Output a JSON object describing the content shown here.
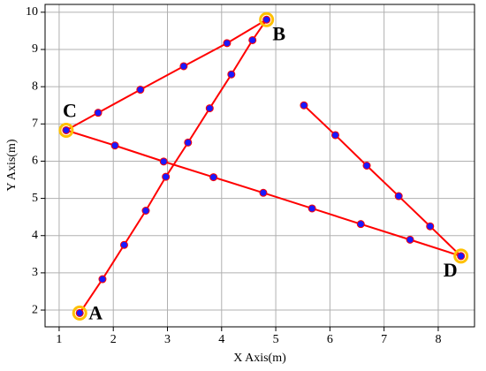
{
  "chart_data": {
    "type": "line",
    "x_label": "X Axis(m)",
    "y_label": "Y Axis(m)",
    "x": [
      1.38,
      1.8,
      2.2,
      2.6,
      2.97,
      3.38,
      3.78,
      4.18,
      4.57,
      4.83,
      4.1,
      3.3,
      2.5,
      1.72,
      1.13,
      2.03,
      2.93,
      3.85,
      4.77,
      5.67,
      6.57,
      7.48,
      8.42,
      7.85,
      7.27,
      6.68,
      6.1,
      5.52
    ],
    "series": [
      {
        "color": "#ff0000",
        "marker_color": "#1a1aff",
        "values": [
          1.92,
          2.83,
          3.75,
          4.67,
          5.58,
          6.5,
          7.42,
          8.33,
          9.25,
          9.8,
          9.17,
          8.55,
          7.92,
          7.3,
          6.83,
          6.42,
          5.99,
          5.57,
          5.15,
          4.73,
          4.31,
          3.89,
          3.45,
          4.25,
          5.06,
          5.88,
          6.7,
          7.5
        ]
      }
    ],
    "annotations": [
      {
        "text": "A",
        "x": 1.38,
        "y": 1.92
      },
      {
        "text": "B",
        "x": 4.83,
        "y": 9.8
      },
      {
        "text": "C",
        "x": 1.13,
        "y": 6.83
      },
      {
        "text": "D",
        "x": 8.42,
        "y": 3.45
      }
    ],
    "highlight_color": "#ffc000",
    "xlim": [
      0.74,
      8.67
    ],
    "ylim": [
      1.55,
      10.21
    ],
    "xticks": [
      1,
      2,
      3,
      4,
      5,
      6,
      7,
      8
    ],
    "yticks": [
      2,
      3,
      4,
      5,
      6,
      7,
      8,
      9,
      10
    ],
    "grid": true
  }
}
